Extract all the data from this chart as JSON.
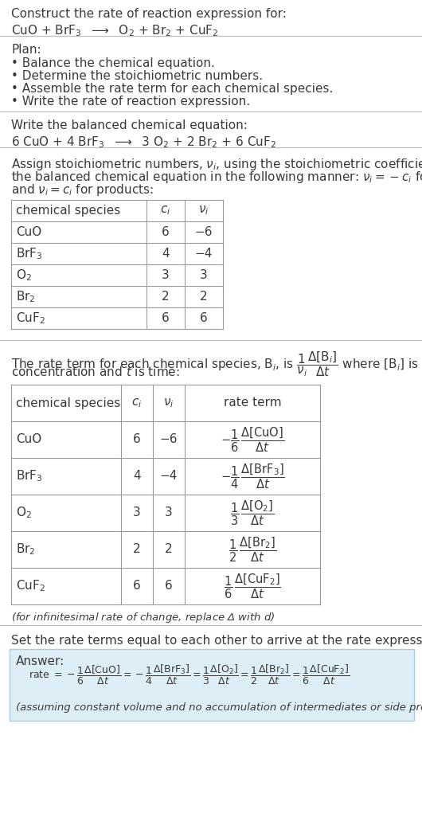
{
  "bg_color": "#ffffff",
  "text_color": "#3a3a3a",
  "section1_title": "Construct the rate of reaction expression for:",
  "section1_eq": "CuO + BrF$_3$  $\\longrightarrow$  O$_2$ + Br$_2$ + CuF$_2$",
  "plan_title": "Plan:",
  "plan_items": [
    "• Balance the chemical equation.",
    "• Determine the stoichiometric numbers.",
    "• Assemble the rate term for each chemical species.",
    "• Write the rate of reaction expression."
  ],
  "balanced_title": "Write the balanced chemical equation:",
  "balanced_eq": "6 CuO + 4 BrF$_3$  $\\longrightarrow$  3 O$_2$ + 2 Br$_2$ + 6 CuF$_2$",
  "stoich_intro_lines": [
    "Assign stoichiometric numbers, $\\nu_i$, using the stoichiometric coefficients, $c_i$, from",
    "the balanced chemical equation in the following manner: $\\nu_i = -c_i$ for reactants",
    "and $\\nu_i = c_i$ for products:"
  ],
  "table1_headers": [
    "chemical species",
    "$c_i$",
    "$\\nu_i$"
  ],
  "table1_rows": [
    [
      "CuO",
      "6",
      "−6"
    ],
    [
      "BrF$_3$",
      "4",
      "−4"
    ],
    [
      "O$_2$",
      "3",
      "3"
    ],
    [
      "Br$_2$",
      "2",
      "2"
    ],
    [
      "CuF$_2$",
      "6",
      "6"
    ]
  ],
  "rate_intro_lines": [
    "The rate term for each chemical species, B$_i$, is $\\dfrac{1}{\\nu_i}\\dfrac{\\Delta[\\mathrm{B}_i]}{\\Delta t}$ where [B$_i$] is the amount",
    "concentration and $t$ is time:"
  ],
  "table2_headers": [
    "chemical species",
    "$c_i$",
    "$\\nu_i$",
    "rate term"
  ],
  "table2_rows": [
    [
      "CuO",
      "6",
      "−6",
      "$-\\dfrac{1}{6}\\,\\dfrac{\\Delta[\\mathrm{CuO}]}{\\Delta t}$"
    ],
    [
      "BrF$_3$",
      "4",
      "−4",
      "$-\\dfrac{1}{4}\\,\\dfrac{\\Delta[\\mathrm{BrF_3}]}{\\Delta t}$"
    ],
    [
      "O$_2$",
      "3",
      "3",
      "$\\dfrac{1}{3}\\,\\dfrac{\\Delta[\\mathrm{O_2}]}{\\Delta t}$"
    ],
    [
      "Br$_2$",
      "2",
      "2",
      "$\\dfrac{1}{2}\\,\\dfrac{\\Delta[\\mathrm{Br_2}]}{\\Delta t}$"
    ],
    [
      "CuF$_2$",
      "6",
      "6",
      "$\\dfrac{1}{6}\\,\\dfrac{\\Delta[\\mathrm{CuF_2}]}{\\Delta t}$"
    ]
  ],
  "infinitesimal_note": "(for infinitesimal rate of change, replace Δ with $d$)",
  "set_equal_text": "Set the rate terms equal to each other to arrive at the rate expression:",
  "answer_box_color": "#ddeef6",
  "answer_label": "Answer:",
  "answer_eq": "rate $= -\\dfrac{1}{6}\\dfrac{\\Delta[\\mathrm{CuO}]}{\\Delta t} = -\\dfrac{1}{4}\\dfrac{\\Delta[\\mathrm{BrF_3}]}{\\Delta t} = \\dfrac{1}{3}\\dfrac{\\Delta[\\mathrm{O_2}]}{\\Delta t} = \\dfrac{1}{2}\\dfrac{\\Delta[\\mathrm{Br_2}]}{\\Delta t} = \\dfrac{1}{6}\\dfrac{\\Delta[\\mathrm{CuF_2}]}{\\Delta t}$",
  "answer_note": "(assuming constant volume and no accumulation of intermediates or side products)"
}
